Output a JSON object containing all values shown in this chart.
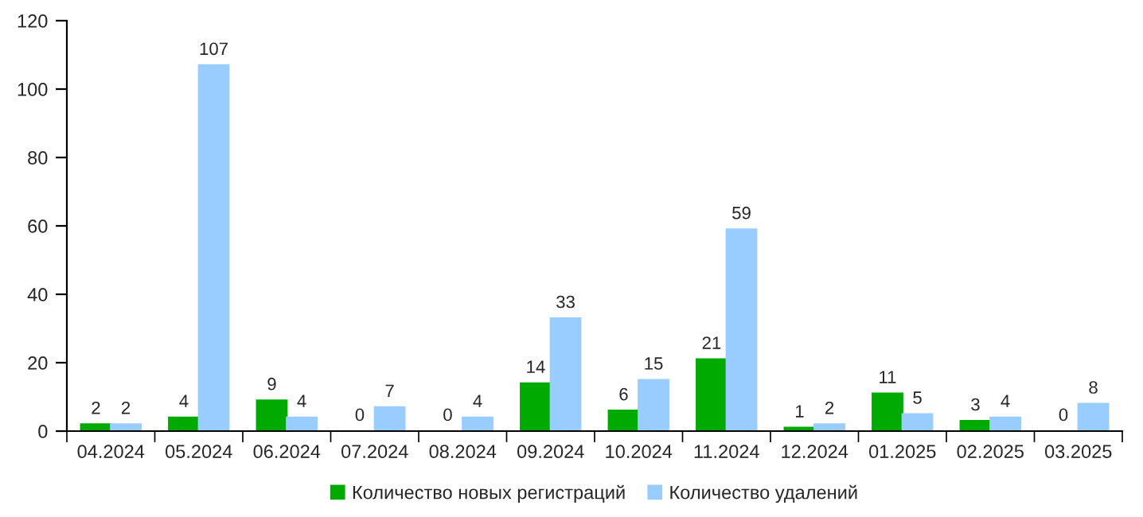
{
  "chart_data": {
    "type": "bar",
    "categories": [
      "04.2024",
      "05.2024",
      "06.2024",
      "07.2024",
      "08.2024",
      "09.2024",
      "10.2024",
      "11.2024",
      "12.2024",
      "01.2025",
      "02.2025",
      "03.2025"
    ],
    "series": [
      {
        "name": "Количество новых регистраций",
        "color": "#00aa00",
        "values": [
          2,
          4,
          9,
          0,
          0,
          14,
          6,
          21,
          1,
          11,
          3,
          0
        ]
      },
      {
        "name": "Количество удалений",
        "color": "#99ccff",
        "values": [
          2,
          107,
          4,
          7,
          4,
          33,
          15,
          59,
          2,
          5,
          4,
          8
        ]
      }
    ],
    "ylim": [
      0,
      120
    ],
    "yticks": [
      0,
      20,
      40,
      60,
      80,
      100,
      120
    ],
    "grid": false,
    "legend": "bottom",
    "data_labels": true
  }
}
